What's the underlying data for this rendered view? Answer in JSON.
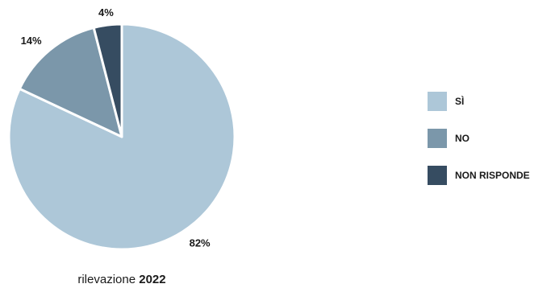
{
  "chart_data": {
    "type": "pie",
    "categories": [
      "SÌ",
      "NO",
      "NON RISPONDE"
    ],
    "values": [
      82,
      14,
      4
    ],
    "labels": [
      "82%",
      "14%",
      "4%"
    ],
    "colors": [
      "#adc7d8",
      "#7b97aa",
      "#364c61"
    ],
    "legend_position": "right"
  },
  "caption": {
    "prefix": "rilevazione",
    "year": "2022"
  }
}
